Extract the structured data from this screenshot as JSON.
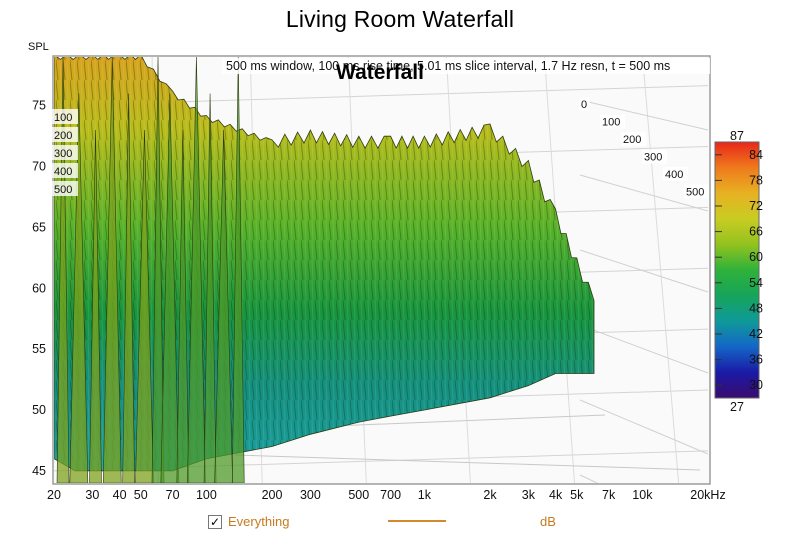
{
  "window_title": "Living Room Waterfall",
  "legend": {
    "checked": true,
    "label": "Everything",
    "unit": "dB",
    "line_color": "#d48a2c"
  },
  "chart_data": {
    "type": "area",
    "title": "Waterfall",
    "subtitle": "500 ms window, 100 ms rise time, 5.01 ms slice interval, 1.7 Hz resn, t = 500 ms",
    "ylabel": "SPL",
    "xlabel": "",
    "x_scale": "log",
    "xlim": [
      20,
      20000
    ],
    "ylim": [
      44,
      79
    ],
    "x_ticks": [
      {
        "v": 20,
        "label": "20"
      },
      {
        "v": 30,
        "label": "30"
      },
      {
        "v": 40,
        "label": "40"
      },
      {
        "v": 50,
        "label": "50"
      },
      {
        "v": 70,
        "label": "70"
      },
      {
        "v": 100,
        "label": "100"
      },
      {
        "v": 200,
        "label": "200"
      },
      {
        "v": 300,
        "label": "300"
      },
      {
        "v": 500,
        "label": "500"
      },
      {
        "v": 700,
        "label": "700"
      },
      {
        "v": 1000,
        "label": "1k"
      },
      {
        "v": 2000,
        "label": "2k"
      },
      {
        "v": 3000,
        "label": "3k"
      },
      {
        "v": 4000,
        "label": "4k"
      },
      {
        "v": 5000,
        "label": "5k"
      },
      {
        "v": 7000,
        "label": "7k"
      },
      {
        "v": 10000,
        "label": "10k"
      },
      {
        "v": 20000,
        "label": "20kHz"
      }
    ],
    "y_ticks": [
      45,
      50,
      55,
      60,
      65,
      70,
      75
    ],
    "time_axis_ms": {
      "left_labels": [
        "100",
        "200",
        "300",
        "400",
        "500"
      ],
      "right_labels": [
        "0",
        "100",
        "200",
        "300",
        "400",
        "500"
      ]
    },
    "color_scale": {
      "min_label": "27",
      "max_label": "87",
      "ticks": [
        84,
        78,
        72,
        66,
        60,
        54,
        48,
        42,
        36,
        30
      ],
      "min": 27,
      "max": 87,
      "colors": [
        "#3a0b6e",
        "#1a1aa6",
        "#1466c6",
        "#0f9a9a",
        "#16a45a",
        "#2fb23a",
        "#93c21f",
        "#c9cc22",
        "#e7b122",
        "#ef7a1c",
        "#e8261a"
      ]
    },
    "front_slice": {
      "x": [
        20,
        25,
        30,
        40,
        50,
        70,
        100,
        200,
        300,
        500,
        700,
        1000,
        2000,
        3000,
        4000,
        5000,
        6000
      ],
      "y": [
        46,
        45,
        45,
        45,
        45,
        45,
        46,
        47,
        48,
        49,
        49.5,
        50,
        51,
        52,
        53,
        53,
        53
      ]
    },
    "back_envelope": {
      "x": [
        20,
        30,
        40,
        50,
        70,
        100,
        200,
        300,
        500,
        700,
        1000,
        2000,
        3000,
        4000,
        5000,
        6000
      ],
      "y": [
        79,
        79,
        79,
        79,
        76,
        74,
        72,
        72.5,
        72,
        72,
        72,
        73,
        70,
        66,
        62,
        59
      ]
    },
    "grid": true
  }
}
